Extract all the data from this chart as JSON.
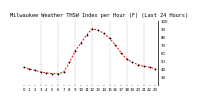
{
  "title": "Milwaukee Weather THSW Index per Hour (F) (Last 24 Hours)",
  "x": [
    0,
    1,
    2,
    3,
    4,
    5,
    6,
    7,
    8,
    9,
    10,
    11,
    12,
    13,
    14,
    15,
    16,
    17,
    18,
    19,
    20,
    21,
    22,
    23
  ],
  "y": [
    42,
    40,
    38,
    36,
    35,
    34,
    34,
    36,
    48,
    62,
    72,
    82,
    90,
    88,
    84,
    78,
    70,
    60,
    52,
    48,
    45,
    43,
    42,
    40
  ],
  "line_color": "#ff0000",
  "marker_color": "#000000",
  "bg_color": "#ffffff",
  "title_bg": "#b0b0b0",
  "grid_color": "#888888",
  "ylim": [
    20,
    100
  ],
  "xlim": [
    -0.5,
    23.5
  ],
  "yticks": [
    30,
    40,
    50,
    60,
    70,
    80,
    90,
    100
  ],
  "xticks": [
    0,
    1,
    2,
    3,
    4,
    5,
    6,
    7,
    8,
    9,
    10,
    11,
    12,
    13,
    14,
    15,
    16,
    17,
    18,
    19,
    20,
    21,
    22,
    23
  ],
  "vgrid_positions": [
    3,
    6,
    9,
    12,
    15,
    18,
    21
  ],
  "title_fontsize": 3.8,
  "tick_fontsize": 2.8
}
